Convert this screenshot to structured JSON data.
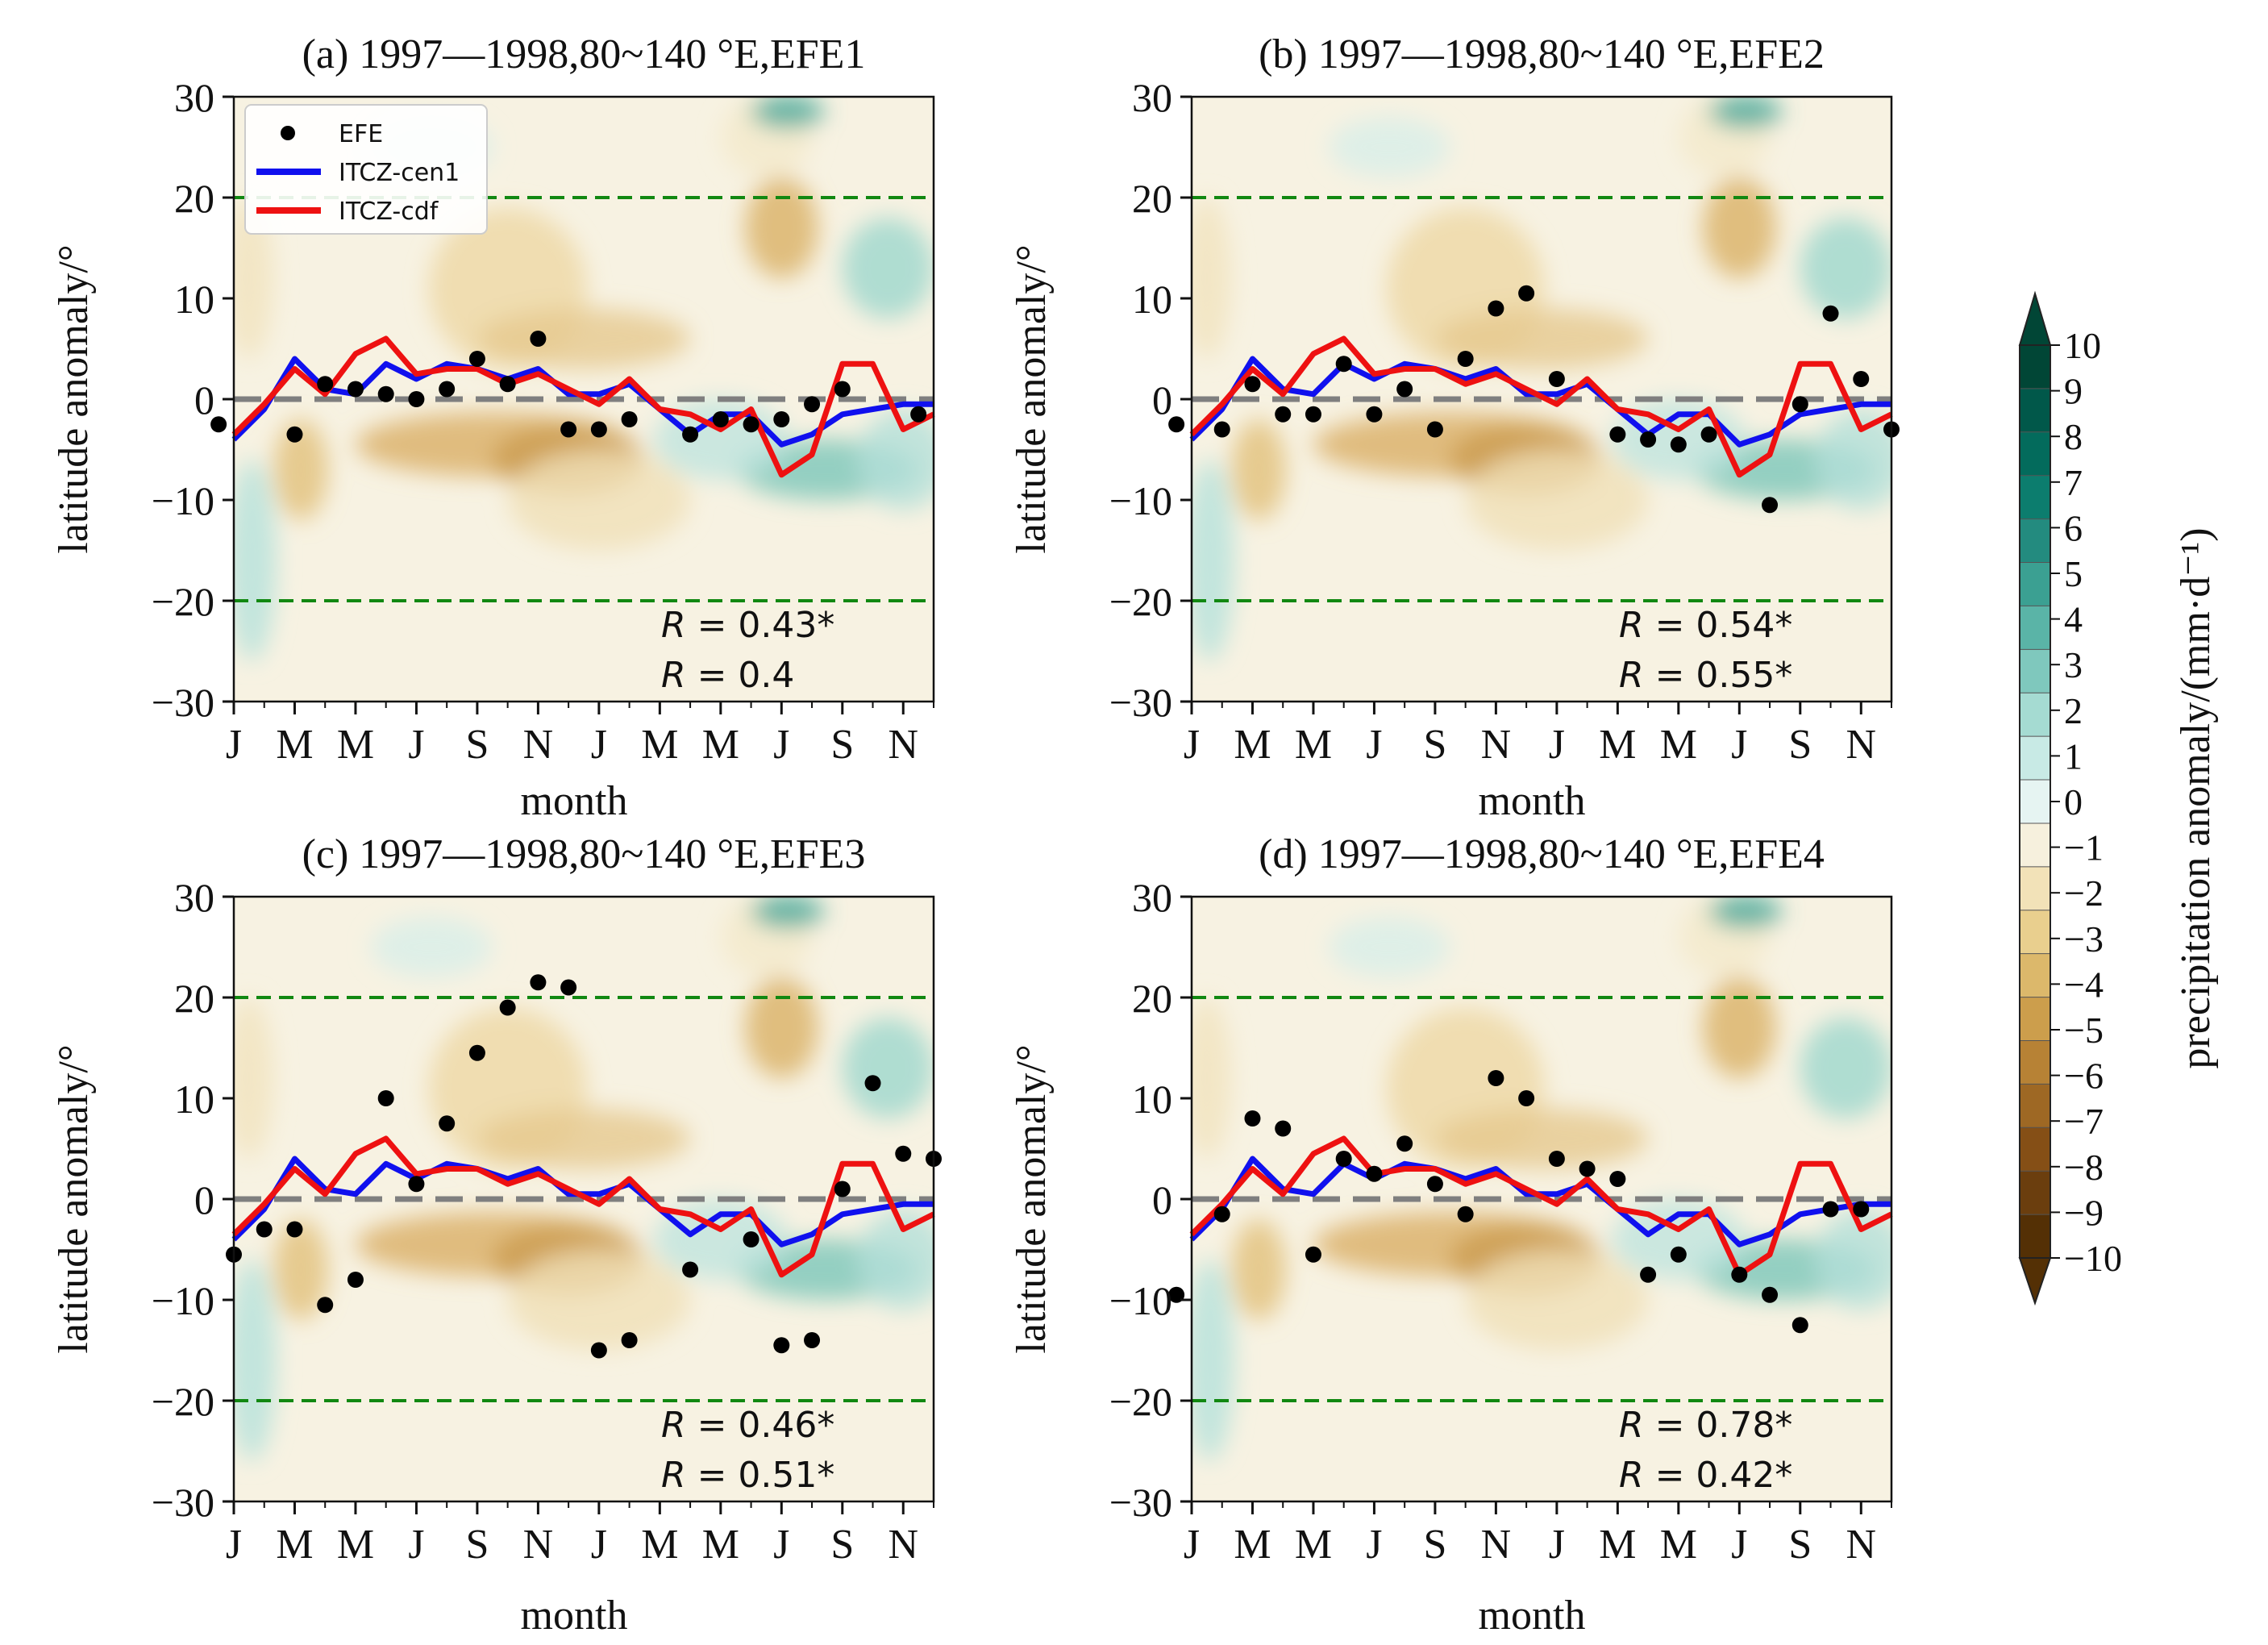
{
  "colors": {
    "itcz_cen1": "#1010ee",
    "itcz_cdf": "#ee1111",
    "efe": "#000000",
    "zero_line": "#7f7f7f",
    "ref_lines": "#118811",
    "colorbar_top": "#014636",
    "colorbar_bottom": "#543005"
  },
  "shared": {
    "xlabel": "month",
    "ylabel": "latitude anomaly/°",
    "month_ticks": [
      "J",
      "M",
      "M",
      "J",
      "S",
      "N",
      "J",
      "M",
      "M",
      "J",
      "S",
      "N"
    ],
    "month_tick_index": [
      0,
      2,
      4,
      6,
      8,
      10,
      12,
      14,
      16,
      18,
      20,
      22
    ],
    "yticks": [
      "30",
      "20",
      "10",
      "0",
      "−10",
      "−20",
      "−30"
    ],
    "ytick_values": [
      30,
      20,
      10,
      0,
      -10,
      -20,
      -30
    ],
    "ylim": [
      -30,
      30
    ],
    "xlim": [
      0,
      23
    ],
    "ref_lines_y": [
      20,
      -20,
      0
    ],
    "legend": {
      "efe": "EFE",
      "cen1": "ITCZ-cen1",
      "cdf": "ITCZ-cdf"
    },
    "r_prefix": "R",
    "itcz_cen1": [
      -4,
      -1,
      4,
      1,
      0.5,
      3.5,
      2,
      3.5,
      3,
      2,
      3,
      0.5,
      0.5,
      1.5,
      -1,
      -3.5,
      -1.5,
      -1.5,
      -4.5,
      -3.5,
      -1.5,
      -1,
      -0.5,
      -0.5
    ],
    "itcz_cdf": [
      -3.5,
      -0.5,
      3,
      0.5,
      4.5,
      6,
      2.5,
      3,
      3,
      1.5,
      2.5,
      1,
      -0.5,
      2,
      -1,
      -1.5,
      -3,
      -1,
      -7.5,
      -5.5,
      3.5,
      3.5,
      -3,
      -1.5
    ]
  },
  "chart_data": [
    {
      "type": "line",
      "title": "(a) 1997—1998,80~140 °E,EFE1",
      "xlabel": "month",
      "ylabel": "latitude anomaly/°",
      "ylim": [
        -30,
        30
      ],
      "legend_placement": "top-left",
      "series": [
        {
          "name": "ITCZ-cen1",
          "source": "shared.itcz_cen1"
        },
        {
          "name": "ITCZ-cdf",
          "source": "shared.itcz_cdf"
        },
        {
          "name": "EFE",
          "points": [
            [
              -0.5,
              -2.5
            ],
            [
              2,
              -3.5
            ],
            [
              3,
              1.5
            ],
            [
              4,
              1
            ],
            [
              5,
              0.5
            ],
            [
              6,
              0
            ],
            [
              7,
              1
            ],
            [
              8,
              4
            ],
            [
              9,
              1.5
            ],
            [
              10,
              6
            ],
            [
              11,
              -3
            ],
            [
              12,
              -3
            ],
            [
              13,
              -2
            ],
            [
              15,
              -3.5
            ],
            [
              16,
              -2
            ],
            [
              17,
              -2.5
            ],
            [
              18,
              -2
            ],
            [
              19,
              -0.5
            ],
            [
              20,
              1
            ],
            [
              22.5,
              -1.5
            ]
          ]
        }
      ],
      "r_cen1": "0.43*",
      "r_cdf": "0.4"
    },
    {
      "type": "line",
      "title": "(b) 1997—1998,80~140 °E,EFE2",
      "xlabel": "month",
      "ylabel": "latitude anomaly/°",
      "ylim": [
        -30,
        30
      ],
      "series": [
        {
          "name": "ITCZ-cen1",
          "source": "shared.itcz_cen1"
        },
        {
          "name": "ITCZ-cdf",
          "source": "shared.itcz_cdf"
        },
        {
          "name": "EFE",
          "points": [
            [
              -0.5,
              -2.5
            ],
            [
              1,
              -3
            ],
            [
              2,
              1.5
            ],
            [
              3,
              -1.5
            ],
            [
              4,
              -1.5
            ],
            [
              5,
              3.5
            ],
            [
              6,
              -1.5
            ],
            [
              7,
              1
            ],
            [
              8,
              -3
            ],
            [
              9,
              4
            ],
            [
              10,
              9
            ],
            [
              11,
              10.5
            ],
            [
              12,
              2
            ],
            [
              14,
              -3.5
            ],
            [
              15,
              -4
            ],
            [
              16,
              -4.5
            ],
            [
              17,
              -3.5
            ],
            [
              19,
              -10.5
            ],
            [
              20,
              -0.5
            ],
            [
              21,
              8.5
            ],
            [
              22,
              2
            ],
            [
              23,
              -3
            ]
          ]
        }
      ],
      "r_cen1": "0.54*",
      "r_cdf": "0.55*"
    },
    {
      "type": "line",
      "title": "(c) 1997—1998,80~140 °E,EFE3",
      "xlabel": "month",
      "ylabel": "latitude anomaly/°",
      "ylim": [
        -30,
        30
      ],
      "series": [
        {
          "name": "ITCZ-cen1",
          "source": "shared.itcz_cen1"
        },
        {
          "name": "ITCZ-cdf",
          "source": "shared.itcz_cdf"
        },
        {
          "name": "EFE",
          "points": [
            [
              0,
              -5.5
            ],
            [
              1,
              -3
            ],
            [
              2,
              -3
            ],
            [
              3,
              -10.5
            ],
            [
              4,
              -8
            ],
            [
              5,
              10
            ],
            [
              6,
              1.5
            ],
            [
              7,
              7.5
            ],
            [
              8,
              14.5
            ],
            [
              9,
              19
            ],
            [
              10,
              21.5
            ],
            [
              11,
              21
            ],
            [
              12,
              -15
            ],
            [
              13,
              -14
            ],
            [
              15,
              -7
            ],
            [
              17,
              -4
            ],
            [
              18,
              -14.5
            ],
            [
              19,
              -14
            ],
            [
              20,
              1
            ],
            [
              21,
              11.5
            ],
            [
              22,
              4.5
            ],
            [
              23,
              4
            ]
          ]
        }
      ],
      "r_cen1": "0.46*",
      "r_cdf": "0.51*"
    },
    {
      "type": "line",
      "title": "(d) 1997—1998,80~140 °E,EFE4",
      "xlabel": "month",
      "ylabel": "latitude anomaly/°",
      "ylim": [
        -30,
        30
      ],
      "series": [
        {
          "name": "ITCZ-cen1",
          "source": "shared.itcz_cen1"
        },
        {
          "name": "ITCZ-cdf",
          "source": "shared.itcz_cdf"
        },
        {
          "name": "EFE",
          "points": [
            [
              -0.5,
              -9.5
            ],
            [
              1,
              -1.5
            ],
            [
              2,
              8
            ],
            [
              3,
              7
            ],
            [
              4,
              -5.5
            ],
            [
              5,
              4
            ],
            [
              6,
              2.5
            ],
            [
              7,
              5.5
            ],
            [
              8,
              1.5
            ],
            [
              9,
              -1.5
            ],
            [
              10,
              12
            ],
            [
              11,
              10
            ],
            [
              12,
              4
            ],
            [
              13,
              3
            ],
            [
              14,
              2
            ],
            [
              15,
              -7.5
            ],
            [
              16,
              -5.5
            ],
            [
              18,
              -7.5
            ],
            [
              19,
              -9.5
            ],
            [
              20,
              -12.5
            ],
            [
              21,
              -1
            ],
            [
              22,
              -1
            ]
          ]
        }
      ],
      "r_cen1": "0.78*",
      "r_cdf": "0.42*"
    }
  ],
  "colorbar": {
    "label": "precipitation anomaly/(mm·d⁻¹)",
    "ticks": [
      "10",
      "9",
      "8",
      "7",
      "6",
      "5",
      "4",
      "3",
      "2",
      "1",
      "0",
      "−1",
      "−2",
      "−3",
      "−4",
      "−5",
      "−6",
      "−7",
      "−8",
      "−9",
      "−10"
    ],
    "levels": [
      "#014636",
      "#01584a",
      "#036b5c",
      "#0c7d6e",
      "#238b7f",
      "#3ba092",
      "#5ab4a7",
      "#7fc8bd",
      "#a5dbd2",
      "#c8eae5",
      "#e6f4f2",
      "#f6f0dd",
      "#f2e2b8",
      "#e9cf8e",
      "#dcb86b",
      "#cc9e4c",
      "#b78235",
      "#9e6824",
      "#854f16",
      "#6b3e0e",
      "#543005"
    ]
  }
}
